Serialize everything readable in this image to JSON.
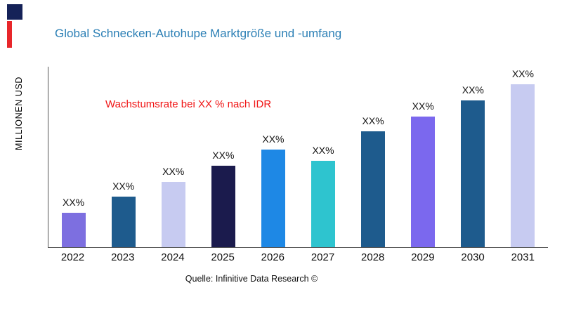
{
  "title": "Global Schnecken-Autohupe Marktgröße und -umfang",
  "annotation": "Wachstumsrate bei XX % nach IDR",
  "source": "Quelle: Infinitive Data Research ©",
  "colors": {
    "title": "#2b7fb5",
    "annotation": "#f01414",
    "logo_square": "#152258",
    "logo_bar": "#e8262a"
  },
  "chart_data": {
    "type": "bar",
    "title": "Global Schnecken-Autohupe Marktgröße und -umfang",
    "xlabel": "",
    "ylabel": "MILLIONEN USD",
    "categories": [
      "2022",
      "2023",
      "2024",
      "2025",
      "2026",
      "2027",
      "2028",
      "2029",
      "2030",
      "2031"
    ],
    "values": [
      21,
      31,
      40,
      50,
      60,
      53,
      71,
      80,
      90,
      100
    ],
    "bar_labels": [
      "XX%",
      "XX%",
      "XX%",
      "XX%",
      "XX%",
      "XX%",
      "XX%",
      "XX%",
      "XX%",
      "XX%"
    ],
    "bar_colors": [
      "#7d6fe0",
      "#1e5b8d",
      "#c7cbf1",
      "#1b1b4d",
      "#1e88e5",
      "#2ec4cf",
      "#1e5b8d",
      "#7b68ee",
      "#1e5b8d",
      "#c7cbf1"
    ],
    "ylim": [
      0,
      100
    ],
    "grid": false,
    "legend": "none",
    "annotation": "Wachstumsrate bei XX % nach IDR"
  }
}
